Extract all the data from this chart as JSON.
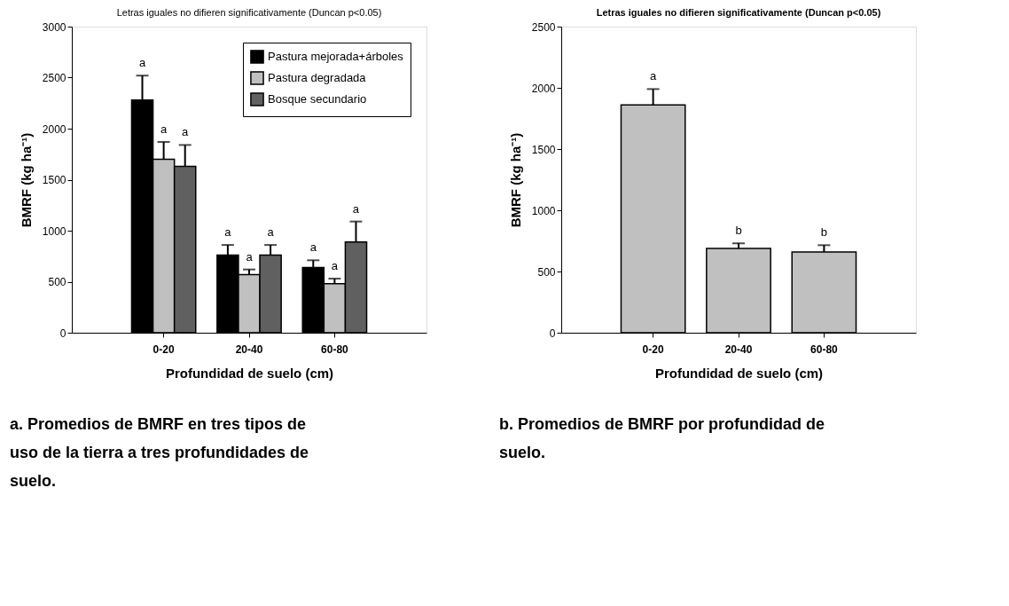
{
  "chart_data": [
    {
      "type": "bar",
      "title": "Letras iguales no difieren significativamente (Duncan p<0.05)",
      "xlabel": "Profundidad de suelo (cm)",
      "ylabel": "BMRF (kg ha⁻¹)",
      "categories": [
        "0-20",
        "20-40",
        "60-80"
      ],
      "series": [
        {
          "name": "Pastura mejorada+árboles",
          "color": "#000000",
          "values": [
            2280,
            760,
            640
          ],
          "errors": [
            [
              2280,
              2520
            ],
            [
              760,
              860
            ],
            [
              640,
              710
            ]
          ],
          "value_labels": [
            "a",
            "a",
            "a"
          ]
        },
        {
          "name": "Pastura degradada",
          "color": "#c0c0c0",
          "values": [
            1700,
            570,
            480
          ],
          "errors": [
            [
              1700,
              1870
            ],
            [
              570,
              620
            ],
            [
              480,
              530
            ]
          ],
          "value_labels": [
            "a",
            "a",
            "a"
          ]
        },
        {
          "name": "Bosque secundario",
          "color": "#606060",
          "values": [
            1630,
            760,
            890
          ],
          "errors": [
            [
              1630,
              1840
            ],
            [
              760,
              860
            ],
            [
              890,
              1090
            ]
          ],
          "value_labels": [
            "a",
            "a",
            "a"
          ]
        }
      ],
      "ylim": [
        0,
        3000
      ],
      "yticks": [
        0,
        500,
        1000,
        1500,
        2000,
        2500,
        3000
      ],
      "grid": false,
      "legend": "top right",
      "annotations": [
        "a.  Promedios de BMRF en tres tipos de uso de la tierra a tres profundidades de suelo."
      ]
    },
    {
      "type": "bar",
      "title": "Letras iguales no difieren significativamente (Duncan p<0.05)",
      "xlabel": "Profundidad de suelo (cm)",
      "ylabel": "BMRF (kg ha⁻¹)",
      "categories": [
        "0-20",
        "20-40",
        "60-80"
      ],
      "series": [
        {
          "color": "#c0c0c0",
          "values": [
            1860,
            688,
            660
          ],
          "errors": [
            [
              1860,
              1990
            ],
            [
              688,
              730
            ],
            [
              660,
              715
            ]
          ],
          "value_labels": [
            "a",
            "b",
            "b"
          ]
        }
      ],
      "ylim": [
        0,
        2500
      ],
      "yticks": [
        0,
        500,
        1000,
        1500,
        2000,
        2500
      ],
      "grid": false,
      "legend": false,
      "annotations": [
        "b.  Promedios de BMRF por profundidad de suelo."
      ]
    }
  ]
}
